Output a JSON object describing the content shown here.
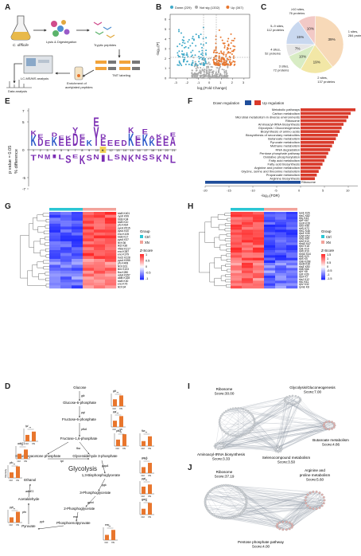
{
  "panel_labels": [
    "A",
    "B",
    "C",
    "D",
    "E",
    "F",
    "G",
    "H",
    "I",
    "J"
  ],
  "panelA": {
    "organism": "C. difficile",
    "step1": "Lysis & Digestegation",
    "step2": "Tryptic peptides",
    "step3": "TMT labeling",
    "step4": "Enrichment of acetylated peptides",
    "step5": "LC-MS/MS analysis",
    "step6": "Data analysis",
    "tmt_tag": "TMT"
  },
  "panelB": {
    "legend": [
      {
        "label": "Down (229)",
        "color": "#3fa9c9"
      },
      {
        "label": "Not sig (1332)",
        "color": "#aaaaaa"
      },
      {
        "label": "Up (347)",
        "color": "#e8762d"
      }
    ],
    "ylabel": "-log₁₀(P)",
    "xlabel": "log₂(Fold Change)",
    "xticks": [
      "-3",
      "-2",
      "-1",
      "0",
      "1",
      "2",
      "3"
    ],
    "yticks": [
      "0",
      "1",
      "2",
      "3",
      "4",
      "5",
      "6"
    ]
  },
  "panelC": {
    "chart_data": {
      "type": "pie",
      "slices": [
        {
          "label": "1 sites, 284 proteins",
          "pct": 39,
          "color": "#f7d9b8"
        },
        {
          "label": "2 sites, 137 proteins",
          "pct": 19,
          "color": "#f2e7a6"
        },
        {
          "label": "3 sites, 72 proteins",
          "pct": 10,
          "color": "#d8ecc4"
        },
        {
          "label": "4 sites, 52 proteins",
          "pct": 7,
          "color": "#e6e6e6"
        },
        {
          "label": "5–9 sites, 112 proteins",
          "pct": 15,
          "color": "#c9d8ef"
        },
        {
          "label": "≥10 sites, 76 proteins",
          "pct": 10,
          "color": "#f2c9c6"
        }
      ]
    }
  },
  "panelD": {
    "ylabel1": "p value = 0.05",
    "ylabel2": "% difference",
    "yticks": [
      "7",
      "5",
      "0",
      "-5",
      "-7"
    ],
    "positions": [
      "1",
      "2",
      "3",
      "4",
      "5",
      "6",
      "7",
      "8",
      "9",
      "10",
      "11",
      "12",
      "13",
      "14",
      "15",
      "16",
      "17",
      "18",
      "19",
      "20",
      "21"
    ],
    "up_letters": [
      "K",
      "D",
      "E",
      "K",
      "E",
      "E",
      "D",
      "E",
      "K",
      "Y",
      "E",
      "E",
      "E",
      "D",
      "K",
      "E",
      "K",
      "K",
      "E",
      "E",
      "A"
    ],
    "down_letters": [
      "T",
      "N",
      "M",
      "I",
      "L",
      "S",
      "E",
      "K",
      "S",
      "N",
      "I",
      "L",
      "S",
      "N",
      "K",
      "N",
      "S",
      "S",
      "K",
      "N",
      "L"
    ]
  },
  "panelE": {
    "legend": [
      {
        "label": "Down regulation",
        "color": "#1f4e9b"
      },
      {
        "label": "Up regulation",
        "color": "#d93a2b"
      }
    ],
    "xlabel": "-log₁₀(FDR)",
    "xticks": [
      "-20",
      "-15",
      "-10",
      "-5",
      "0",
      "5",
      "10"
    ],
    "chart_data": {
      "type": "bar",
      "categories": [
        "Metabolic pathways",
        "Carbon metabolism",
        "Microbial metabolism in diverse environments",
        "Ribosome",
        "Aminoacyl-tRNA biosynthesis",
        "Glycolysis / Gluconeogenesis",
        "Biosynthesis of amino acids",
        "Biosynthesis of secondary metabolites",
        "Butanoate metabolism",
        "Pyruvate metabolism",
        "Methane metabolism",
        "RNA degradation",
        "Pentose phosphate pathway",
        "Oxidative phosphorylation",
        "Fatty acid metabolism",
        "Fatty acid biosynthesis",
        "Arginine and proline metabolism",
        "Glycine, serine and threonine metabolism",
        "Propanoate metabolism",
        "Arginine biosynthesis",
        "Ribosome"
      ],
      "values": [
        11.5,
        10.5,
        10,
        9.6,
        9,
        8.6,
        8.2,
        7.8,
        7.4,
        7,
        6.6,
        6.2,
        5.8,
        5.4,
        5,
        4.6,
        4.2,
        3.8,
        3.4,
        3,
        -20
      ],
      "xlim": [
        -20,
        12
      ]
    }
  },
  "panelF": {
    "legend_title": "Group",
    "groups": [
      {
        "label": "Ctrl",
        "color": "#2bc6d4"
      },
      {
        "label": "XN",
        "color": "#f2a39b"
      }
    ],
    "zscore_title": "Z-Score",
    "zscore_ticks": [
      "1",
      "0.5",
      "0",
      "-0.5",
      "-1"
    ],
    "rows": [
      "tdcB_K401",
      "cysK_K99",
      "tdcB_K34",
      "tdcB_K10",
      "pfo_K434",
      "pycA_K515",
      "pycA_K40",
      "eno_K105",
      "tdcB_K17",
      "pycA_K37",
      "tkt_K36",
      "tkt2_K38",
      "4hbd_K217",
      "eno_K387",
      "eno_K379",
      "bcd2_K228",
      "pycA_K355",
      "pfo_K408",
      "tkt_K103",
      "tkt1_K103",
      "fba_K280",
      "ackA_K357",
      "aldB_K328",
      "tdcB_K30",
      "eno_K76",
      "tkt_K34"
    ]
  },
  "panelG": {
    "legend_title": "Group",
    "groups": [
      {
        "label": "Ctrl",
        "color": "#2bc6d4"
      },
      {
        "label": "XN",
        "color": "#f2a39b"
      }
    ],
    "zscore_title": "Z-Score",
    "zscore_ticks": [
      "1.5",
      "1",
      "0.5",
      "0",
      "-0.5",
      "-1",
      "-1.5"
    ],
    "rows": [
      "rpsE_K26",
      "rpsC_K82",
      "rplL_K43",
      "rplP_K67",
      "rpsR_K28",
      "rplO_K96",
      "rplD_K72",
      "rpsC_K46",
      "rpsE_K35",
      "rplW_K52",
      "rplQ_K69",
      "rplU_K10",
      "rpmD_K47",
      "rplO_K18",
      "rplE_K19",
      "rplD_K10",
      "rpmD_K44",
      "rplS_K23",
      "rplS_K5",
      "rplB_K268",
      "rpsM_K30",
      "rpsE_K90",
      "rplB_K66",
      "rplY_K8",
      "rplF_K39",
      "rpsF_K7",
      "rpsJ_K12",
      "rplL_K51",
      "rplV_K32",
      "rpmE_K8"
    ]
  },
  "panelH": {
    "title": "Glycolysis",
    "metabolites": [
      "Glucose",
      "Glucose-6-phosphate",
      "Fructose-6-phosphate",
      "Fructose-1,6-phosphate",
      "Glyceraldehyde 3-phosphate",
      "Dihydroxyacetone phosphate",
      "1,3-Bisphosphoglycerate",
      "3-Phosphoglycerate",
      "2-Phosphoglycerate",
      "Phosphoenolpyruvate",
      "Pyruvate",
      "Acetaldehyde",
      "Ethanol",
      "Acetyl-CoA"
    ],
    "enzymes": [
      "glk",
      "pgi",
      "pfkA",
      "fba",
      "tpi",
      "gapA",
      "pgk",
      "gpmI",
      "eno",
      "pyk",
      "pfo",
      "adhE1",
      "adhE1"
    ],
    "bar_groups": [
      "Ctrl",
      "XN"
    ],
    "sig": "**",
    "yaxis": "Intensity"
  },
  "panelI": {
    "nodes": [
      {
        "name": "Ribosome",
        "score": "Score:30.00"
      },
      {
        "name": "Glycolysis/Gluconeogenesis",
        "score": "Score:7.00"
      },
      {
        "name": "Butanoate metabolism",
        "score": "Score:4.86"
      },
      {
        "name": "Aminoacyl-tRNA biosynthesis",
        "score": "Score:3.33"
      },
      {
        "name": "Selenocompound metabolism",
        "score": "Score:3.50"
      }
    ]
  },
  "panelJ": {
    "nodes": [
      {
        "name": "Ribosome",
        "score": "Score:37.19"
      },
      {
        "name": "Arginine and proline metabolism",
        "score": "Score:5.60"
      },
      {
        "name": "Pentose phosphate pathway",
        "score": "Score:4.00"
      }
    ]
  }
}
